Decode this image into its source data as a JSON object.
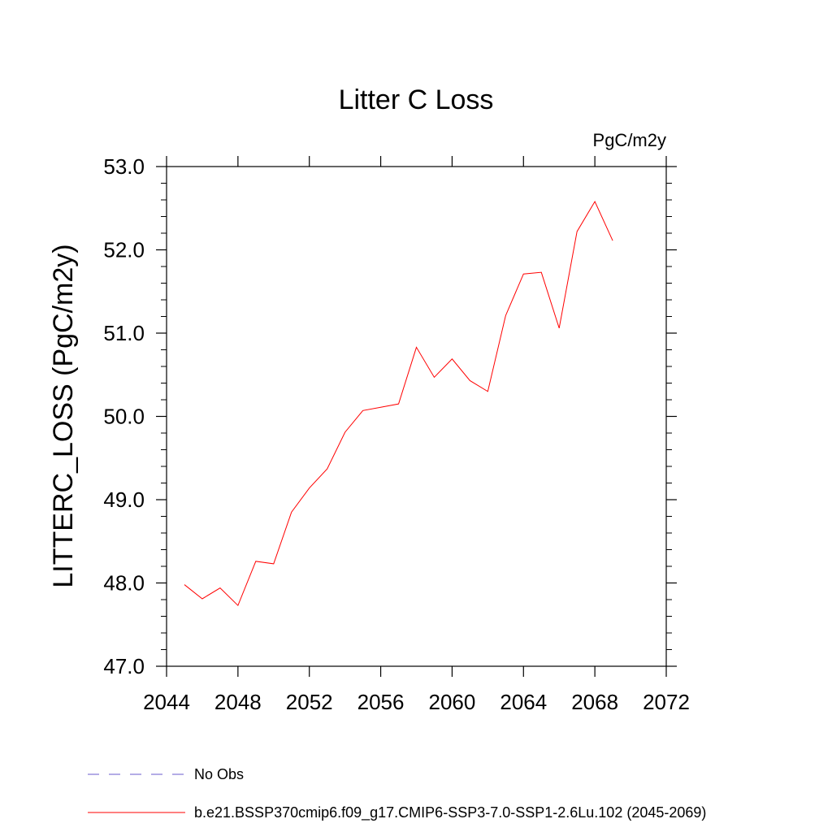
{
  "chart_data": {
    "type": "line",
    "title": "Litter C Loss",
    "units_label": "PgC/m2y",
    "xlabel": "",
    "ylabel": "LITTERC_LOSS  (PgC/m2y)",
    "xlim": [
      2044,
      2072
    ],
    "ylim": [
      47.0,
      53.0
    ],
    "x_ticks": [
      "2044",
      "2048",
      "2052",
      "2056",
      "2060",
      "2064",
      "2068",
      "2072"
    ],
    "y_ticks": [
      "47.0",
      "48.0",
      "49.0",
      "50.0",
      "51.0",
      "52.0",
      "53.0"
    ],
    "grid": false,
    "legend_position": "bottom-left",
    "series": [
      {
        "name": "b.e21.BSSP370cmip6.f09_g17.CMIP6-SSP3-7.0-SSP1-2.6Lu.102 (2045-2069)",
        "color": "#ff0000",
        "style": "solid",
        "x": [
          2045,
          2046,
          2047,
          2048,
          2049,
          2050,
          2051,
          2052,
          2053,
          2054,
          2055,
          2056,
          2057,
          2058,
          2059,
          2060,
          2061,
          2062,
          2063,
          2064,
          2065,
          2066,
          2067,
          2068,
          2069
        ],
        "y": [
          47.98,
          47.81,
          47.94,
          47.73,
          48.26,
          48.23,
          48.85,
          49.14,
          49.37,
          49.81,
          50.07,
          50.11,
          50.15,
          50.83,
          50.47,
          50.69,
          50.43,
          50.3,
          51.21,
          51.71,
          51.73,
          51.06,
          52.22,
          52.58,
          52.11
        ]
      }
    ],
    "legend": [
      {
        "label": "No Obs",
        "color": "#6a5acd",
        "style": "dashed"
      },
      {
        "label": "b.e21.BSSP370cmip6.f09_g17.CMIP6-SSP3-7.0-SSP1-2.6Lu.102 (2045-2069)",
        "color": "#ff0000",
        "style": "solid"
      }
    ]
  }
}
